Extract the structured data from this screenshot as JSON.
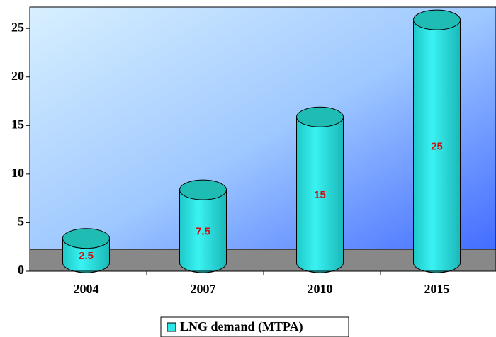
{
  "chart_data": {
    "type": "bar",
    "categories": [
      "2004",
      "2007",
      "2010",
      "2015"
    ],
    "series": [
      {
        "name": "LNG demand (MTPA)",
        "color": "#2ee6e6",
        "values": [
          2.5,
          7.5,
          15,
          25
        ]
      }
    ],
    "ylim": [
      0,
      27.2
    ],
    "yticks": [
      0,
      5,
      10,
      15,
      20,
      25
    ],
    "legend": "bottom"
  }
}
